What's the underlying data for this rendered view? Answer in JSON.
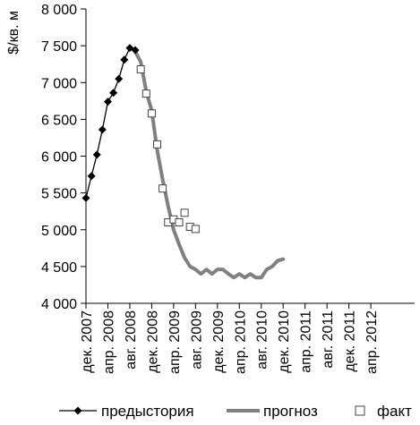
{
  "chart_data": {
    "type": "line",
    "title": "",
    "xlabel": "",
    "ylabel": "$/кв. м",
    "ylim": [
      4000,
      8000
    ],
    "yticks": [
      4000,
      4500,
      5000,
      5500,
      6000,
      6500,
      7000,
      7500,
      8000
    ],
    "ytick_labels": [
      "4 000",
      "4 500",
      "5 000",
      "5 500",
      "6 000",
      "6 500",
      "7 000",
      "7 500",
      "8 000"
    ],
    "x_index_range": [
      0,
      60
    ],
    "xtick_index": [
      0,
      4,
      8,
      12,
      16,
      20,
      24,
      28,
      32,
      36,
      40,
      44,
      48,
      52
    ],
    "xtick_labels": [
      "дек. 2007",
      "апр. 2008",
      "авг. 2008",
      "дек. 2008",
      "апр. 2009",
      "авг. 2009",
      "дек. 2009",
      "апр. 2010",
      "авг. 2010",
      "дек. 2010",
      "апр. 2011",
      "авг. 2011",
      "дек. 2011",
      "апр. 2012"
    ],
    "grid": false,
    "legend_position": "bottom",
    "series": [
      {
        "name": "предыстория",
        "style": "line-diamond",
        "color": "#000000",
        "x_index": [
          0,
          1,
          2,
          3,
          4,
          5,
          6,
          7,
          8,
          9
        ],
        "values": [
          5430,
          5730,
          6020,
          6360,
          6740,
          6860,
          7050,
          7310,
          7470,
          7440
        ]
      },
      {
        "name": "прогноз",
        "style": "thick-line",
        "color": "#808080",
        "x_index": [
          9,
          10,
          11,
          12,
          13,
          14,
          15,
          16,
          17,
          18,
          19,
          20,
          21,
          22,
          23,
          24,
          25,
          26,
          27,
          28,
          29,
          30,
          31,
          32,
          33,
          34,
          35,
          36
        ],
        "values": [
          7420,
          7280,
          6880,
          6620,
          6080,
          5680,
          5320,
          5000,
          4800,
          4620,
          4500,
          4460,
          4400,
          4460,
          4400,
          4460,
          4460,
          4400,
          4350,
          4400,
          4350,
          4400,
          4350,
          4350,
          4460,
          4500,
          4580,
          4600
        ]
      },
      {
        "name": "факт",
        "style": "open-square",
        "color": "#000000",
        "x_index": [
          10,
          11,
          12,
          13,
          14,
          15,
          16,
          17,
          18,
          19,
          20
        ],
        "values": [
          7180,
          6850,
          6580,
          6160,
          5560,
          5100,
          5140,
          5100,
          5230,
          5040,
          5010
        ]
      }
    ]
  }
}
